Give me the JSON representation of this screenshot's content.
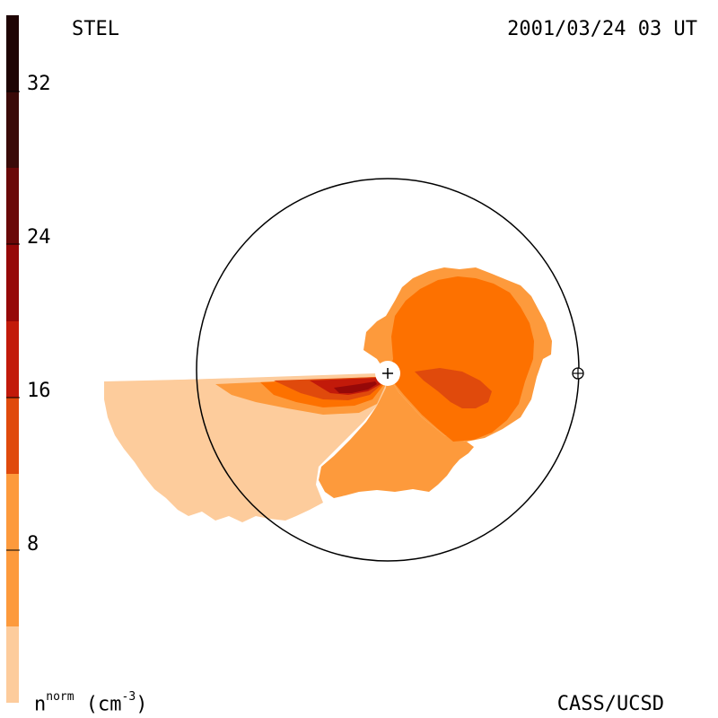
{
  "header": {
    "instrument": "STEL",
    "timestamp": "2001/03/24 03 UT"
  },
  "footer": {
    "credit": "CASS/UCSD",
    "unit_base": "n",
    "unit_sup": "norm",
    "unit_rest": " (cm",
    "unit_exp": "-3",
    "unit_close": ")"
  },
  "colorbar": {
    "ticks": [
      "32",
      "24",
      "16",
      "8"
    ],
    "levels": [
      {
        "color": "#fdcc9c"
      },
      {
        "color": "#fd9a3c"
      },
      {
        "color": "#fd7100"
      },
      {
        "color": "#e04a0c"
      },
      {
        "color": "#c21a0a"
      },
      {
        "color": "#960808"
      },
      {
        "color": "#6a0808"
      },
      {
        "color": "#3a0a08"
      },
      {
        "color": "#1e0404"
      }
    ]
  },
  "markers": {
    "sun": "+",
    "earth": "⊕"
  },
  "colors": {
    "lightest": "#fdcc9c",
    "light": "#fd9a3c",
    "mid": "#fd7100",
    "dark": "#e04a0c",
    "darker": "#c21a0a",
    "deep": "#960808"
  }
}
